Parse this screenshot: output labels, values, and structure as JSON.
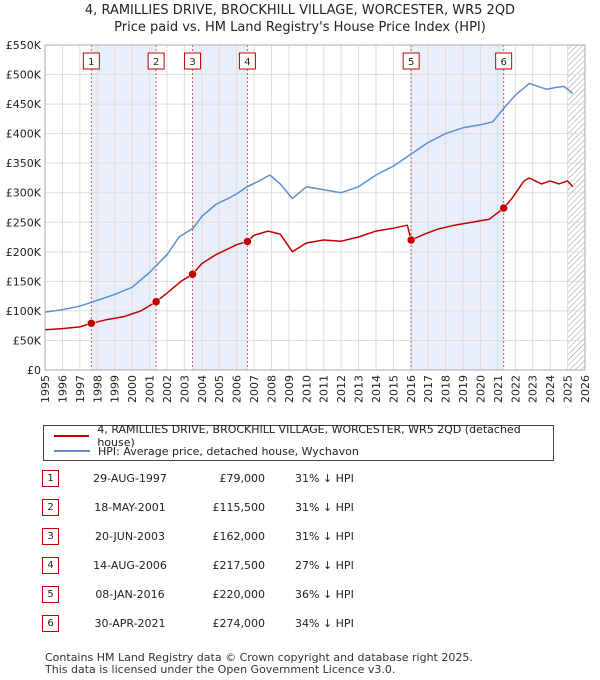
{
  "title_line1": "4, RAMILLIES DRIVE, BROCKHILL VILLAGE, WORCESTER, WR5 2QD",
  "title_line2": "Price paid vs. HM Land Registry's House Price Index (HPI)",
  "legend": {
    "property": "4, RAMILLIES DRIVE, BROCKHILL VILLAGE, WORCESTER, WR5 2QD (detached house)",
    "hpi": "HPI: Average price, detached house, Wychavon"
  },
  "colors": {
    "property": "#c00000",
    "hpi": "#5a8fd0",
    "band": "#e8eefa",
    "marker_border": "#c00000"
  },
  "chart_data": {
    "type": "line",
    "xlim": [
      1995,
      2026
    ],
    "ylim": [
      0,
      550000
    ],
    "y_ticks": [
      {
        "v": 0,
        "label": "£0"
      },
      {
        "v": 50000,
        "label": "£50K"
      },
      {
        "v": 100000,
        "label": "£100K"
      },
      {
        "v": 150000,
        "label": "£150K"
      },
      {
        "v": 200000,
        "label": "£200K"
      },
      {
        "v": 250000,
        "label": "£250K"
      },
      {
        "v": 300000,
        "label": "£300K"
      },
      {
        "v": 350000,
        "label": "£350K"
      },
      {
        "v": 400000,
        "label": "£400K"
      },
      {
        "v": 450000,
        "label": "£450K"
      },
      {
        "v": 500000,
        "label": "£500K"
      },
      {
        "v": 550000,
        "label": "£550K"
      }
    ],
    "x_ticks": [
      "1995",
      "1996",
      "1997",
      "1998",
      "1999",
      "2000",
      "2001",
      "2002",
      "2003",
      "2004",
      "2005",
      "2006",
      "2007",
      "2008",
      "2009",
      "2010",
      "2011",
      "2012",
      "2013",
      "2014",
      "2015",
      "2016",
      "2017",
      "2018",
      "2019",
      "2020",
      "2021",
      "2022",
      "2023",
      "2024",
      "2025",
      "2026"
    ],
    "grid": true,
    "shaded_bands": [
      [
        1997.66,
        2001.38
      ],
      [
        2003.47,
        2006.62
      ],
      [
        2016.02,
        2021.33
      ]
    ],
    "hatch_from": 2025.0,
    "series": [
      {
        "name": "4, RAMILLIES DRIVE, BROCKHILL VILLAGE, WORCESTER, WR5 2QD (detached house)",
        "x": [
          1995.0,
          1996.0,
          1997.0,
          1997.66,
          1998.5,
          1999.5,
          2000.5,
          2001.38,
          2002.0,
          2002.8,
          2003.47,
          2004.0,
          2004.8,
          2005.5,
          2006.0,
          2006.62,
          2007.0,
          2007.8,
          2008.5,
          2009.2,
          2010.0,
          2011.0,
          2012.0,
          2013.0,
          2014.0,
          2015.0,
          2015.8,
          2016.02,
          2016.8,
          2017.5,
          2018.5,
          2019.5,
          2020.5,
          2021.33,
          2021.8,
          2022.5,
          2022.8,
          2023.5,
          2024.0,
          2024.5,
          2025.0,
          2025.3
        ],
        "y": [
          68000,
          70000,
          73000,
          79000,
          85000,
          90000,
          100000,
          115500,
          130000,
          150000,
          162000,
          180000,
          195000,
          205000,
          212000,
          217500,
          228000,
          235000,
          230000,
          200000,
          215000,
          220000,
          218000,
          225000,
          235000,
          240000,
          245000,
          220000,
          230000,
          238000,
          245000,
          250000,
          255000,
          274000,
          290000,
          320000,
          325000,
          315000,
          320000,
          315000,
          320000,
          310000
        ]
      },
      {
        "name": "HPI: Average price, detached house, Wychavon",
        "x": [
          1995.0,
          1996.0,
          1997.0,
          1998.0,
          1999.0,
          2000.0,
          2001.0,
          2002.0,
          2002.7,
          2003.5,
          2004.0,
          2004.8,
          2005.5,
          2006.0,
          2006.6,
          2007.3,
          2007.9,
          2008.5,
          2009.2,
          2010.0,
          2011.0,
          2012.0,
          2013.0,
          2014.0,
          2015.0,
          2016.0,
          2017.0,
          2018.0,
          2019.0,
          2020.0,
          2020.7,
          2021.4,
          2022.0,
          2022.8,
          2023.3,
          2023.8,
          2024.3,
          2024.8,
          2025.3
        ],
        "y": [
          98000,
          102000,
          108000,
          118000,
          128000,
          140000,
          165000,
          195000,
          225000,
          240000,
          260000,
          280000,
          290000,
          298000,
          310000,
          320000,
          330000,
          315000,
          290000,
          310000,
          305000,
          300000,
          310000,
          330000,
          345000,
          365000,
          385000,
          400000,
          410000,
          415000,
          420000,
          445000,
          465000,
          485000,
          480000,
          475000,
          478000,
          480000,
          468000
        ]
      }
    ],
    "markers": [
      {
        "n": "1",
        "x": 1997.66,
        "y": 79000
      },
      {
        "n": "2",
        "x": 2001.38,
        "y": 115500
      },
      {
        "n": "3",
        "x": 2003.47,
        "y": 162000
      },
      {
        "n": "4",
        "x": 2006.62,
        "y": 217500
      },
      {
        "n": "5",
        "x": 2016.02,
        "y": 220000
      },
      {
        "n": "6",
        "x": 2021.33,
        "y": 274000
      }
    ]
  },
  "sales": [
    {
      "n": "1",
      "date": "29-AUG-1997",
      "price": "£79,000",
      "pct": "31% ↓ HPI"
    },
    {
      "n": "2",
      "date": "18-MAY-2001",
      "price": "£115,500",
      "pct": "31% ↓ HPI"
    },
    {
      "n": "3",
      "date": "20-JUN-2003",
      "price": "£162,000",
      "pct": "31% ↓ HPI"
    },
    {
      "n": "4",
      "date": "14-AUG-2006",
      "price": "£217,500",
      "pct": "27% ↓ HPI"
    },
    {
      "n": "5",
      "date": "08-JAN-2016",
      "price": "£220,000",
      "pct": "36% ↓ HPI"
    },
    {
      "n": "6",
      "date": "30-APR-2021",
      "price": "£274,000",
      "pct": "34% ↓ HPI"
    }
  ],
  "footer": {
    "line1": "Contains HM Land Registry data © Crown copyright and database right 2025.",
    "line2": "This data is licensed under the Open Government Licence v3.0."
  }
}
